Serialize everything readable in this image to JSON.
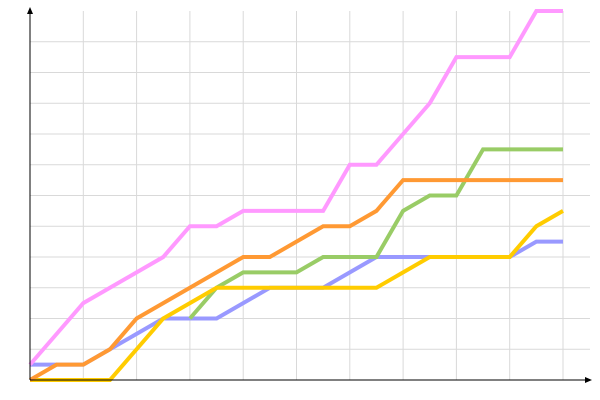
{
  "chart_data": {
    "type": "line",
    "title": "",
    "xlabel": "",
    "ylabel": "",
    "xlim": [
      0,
      20
    ],
    "ylim": [
      0,
      24
    ],
    "grid": true,
    "grid_step": {
      "x": 2,
      "y": 2
    },
    "legend": "none",
    "x": [
      0,
      1,
      2,
      3,
      4,
      5,
      6,
      7,
      8,
      9,
      10,
      11,
      12,
      13,
      14,
      15,
      16,
      17,
      18,
      19,
      20
    ],
    "series": [
      {
        "color": "#9999ff",
        "values": [
          1,
          1,
          1,
          2,
          3,
          4,
          4,
          4,
          5,
          6,
          6,
          6,
          7,
          8,
          8,
          8,
          8,
          8,
          8,
          9,
          9
        ]
      },
      {
        "color": "#99cc66",
        "values": [
          null,
          null,
          null,
          null,
          null,
          null,
          4,
          6,
          7,
          7,
          7,
          8,
          8,
          8,
          11,
          12,
          12,
          15,
          15,
          15,
          15
        ]
      },
      {
        "color": "#ffcc00",
        "values": [
          0,
          0,
          0,
          0,
          2,
          4,
          5,
          6,
          6,
          6,
          6,
          6,
          6,
          6,
          7,
          8,
          8,
          8,
          8,
          10,
          11
        ]
      },
      {
        "color": "#ff9933",
        "values": [
          0,
          1,
          1,
          2,
          4,
          5,
          6,
          7,
          8,
          8,
          9,
          10,
          10,
          11,
          13,
          13,
          13,
          13,
          13,
          13,
          13
        ]
      },
      {
        "color": "#ff99ff",
        "values": [
          1,
          3,
          5,
          6,
          7,
          8,
          10,
          10,
          11,
          11,
          11,
          11,
          14,
          14,
          16,
          18,
          21,
          21,
          21,
          24,
          24
        ]
      }
    ]
  }
}
